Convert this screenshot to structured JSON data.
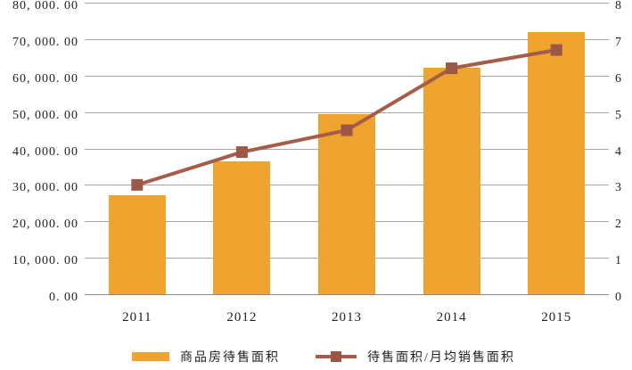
{
  "chart_data": {
    "type": "combo",
    "title": "",
    "categories": [
      "2011",
      "2012",
      "2013",
      "2014",
      "2015"
    ],
    "series": [
      {
        "name": "商品房待售面积",
        "type": "bar",
        "axis": "left",
        "values": [
          27200,
          36500,
          49400,
          62200,
          72000
        ],
        "color": "#EFA42F"
      },
      {
        "name": "待售面积/月均销售面积",
        "type": "line",
        "axis": "right",
        "values": [
          3.0,
          3.9,
          4.5,
          6.2,
          6.7
        ],
        "color": "#A55D4A",
        "marker": "square",
        "marker_color": "#9C5844"
      }
    ],
    "left_axis": {
      "min": 0,
      "max": 80000,
      "step": 10000,
      "tick_labels": [
        "0. 00",
        "10, 000. 00",
        "20, 000. 00",
        "30, 000. 00",
        "40, 000. 00",
        "50, 000. 00",
        "60, 000. 00",
        "70, 000. 00",
        "80, 000. 00"
      ]
    },
    "right_axis": {
      "min": 0,
      "max": 8,
      "step": 1,
      "tick_labels": [
        "0",
        "1",
        "2",
        "3",
        "4",
        "5",
        "6",
        "7",
        "8"
      ]
    },
    "grid": true,
    "legend_position": "bottom"
  },
  "colors": {
    "background": "#FFFFFF",
    "gridline": "#A6A6A6",
    "axis_line": "#8A8A8A",
    "text": "#1F1F1F",
    "bar": "#EFA42F",
    "line": "#A55D4A",
    "marker": "#9C5844"
  }
}
